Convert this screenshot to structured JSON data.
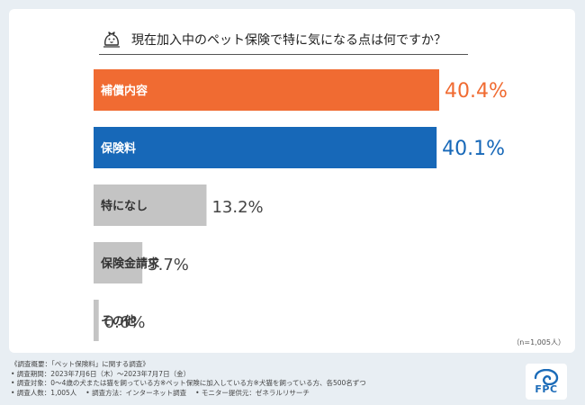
{
  "chart_data": {
    "type": "bar",
    "orientation": "horizontal",
    "title": "現在加入中のペット保険で特に気になる点は何ですか？",
    "categories": [
      "補償内容",
      "保険料",
      "特になし",
      "保険金請求",
      "その他"
    ],
    "values": [
      40.4,
      40.1,
      13.2,
      5.7,
      0.6
    ],
    "value_labels": [
      "40.4%",
      "40.1%",
      "13.2%",
      "5.7%",
      "0.6%"
    ],
    "unit": "%",
    "colors": [
      "#f06b32",
      "#1768b8",
      "#c4c4c4",
      "#c4c4c4",
      "#c4c4c4"
    ],
    "label_colors": [
      "#f06b32",
      "#1768b8",
      "#444444",
      "#444444",
      "#444444"
    ],
    "xlim": [
      0,
      40.4
    ],
    "grid": false
  },
  "note": "（n=1,005人）",
  "footer": {
    "heading": "《調査概要：「ペット保険料」に関する調査》",
    "period": "• 調査期間：2023年7月6日（木）～2023年7月7日（金）",
    "target": "• 調査対象：0～4歳の犬または猫を飼っている方※ペット保険に加入している方※犬猫を飼っている方、各500名ずつ",
    "count": "• 調査人数：1,005人",
    "method": "• 調査方法：インターネット調査",
    "provider": "• モニター提供元：ゼネラルリサーチ"
  },
  "logo": {
    "text": "FPC",
    "color": "#1b6bb8"
  }
}
